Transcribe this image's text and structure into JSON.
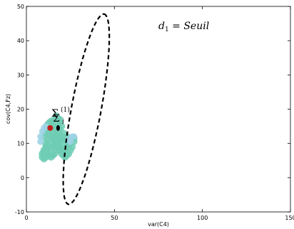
{
  "chart_data": {
    "type": "scatter",
    "xlabel": "var(C4)",
    "ylabel": "cov(C4,Fz)",
    "xlim": [
      0,
      150
    ],
    "ylim": [
      -10,
      50
    ],
    "xticks": [
      0,
      50,
      100,
      150
    ],
    "yticks": [
      -10,
      0,
      10,
      20,
      30,
      40,
      50
    ],
    "grid": false,
    "threshold_label_math": "d",
    "threshold_label_sub": "1",
    "threshold_label_rest": " = Seuil",
    "cluster_label_sigma": "Σ",
    "cluster_label_sub": "i",
    "cluster_label_sup": "(1)",
    "colors": {
      "cluster": "#6fcdb4",
      "cluster_light": "#9fd3e6",
      "center_red": "#c21d1d",
      "center_black": "#000000",
      "ellipse": "#000000"
    },
    "ellipse": {
      "center": [
        34,
        20
      ],
      "semi_axis_along": 31.5,
      "semi_axis_across": 10.5,
      "angle_deg": 60
    },
    "cluster_points": [
      [
        10,
        12
      ],
      [
        11,
        13
      ],
      [
        12,
        14
      ],
      [
        13,
        16
      ],
      [
        14,
        15
      ],
      [
        15,
        16
      ],
      [
        16,
        17
      ],
      [
        12,
        15.5
      ],
      [
        14,
        16.5
      ],
      [
        17,
        18
      ],
      [
        18,
        17
      ],
      [
        19,
        16
      ],
      [
        20,
        15
      ],
      [
        19,
        14
      ],
      [
        18,
        13
      ],
      [
        17,
        12
      ],
      [
        16,
        11
      ],
      [
        15,
        11.5
      ],
      [
        14,
        12
      ],
      [
        13,
        12.5
      ],
      [
        12,
        11
      ],
      [
        11,
        10
      ],
      [
        10,
        8
      ],
      [
        9,
        7
      ],
      [
        9,
        6
      ],
      [
        10,
        7.5
      ],
      [
        12,
        8
      ],
      [
        14,
        8.5
      ],
      [
        15,
        9
      ],
      [
        16,
        10
      ],
      [
        17,
        11
      ],
      [
        18,
        10
      ],
      [
        19,
        9
      ],
      [
        20,
        8.5
      ],
      [
        21,
        8
      ],
      [
        22,
        8.5
      ],
      [
        23,
        9
      ],
      [
        24,
        9.5
      ],
      [
        25,
        10
      ],
      [
        26,
        11
      ],
      [
        27,
        11.5
      ],
      [
        27,
        10.5
      ],
      [
        26,
        9
      ],
      [
        25,
        8
      ],
      [
        24,
        7
      ],
      [
        23,
        6.5
      ],
      [
        22,
        6
      ],
      [
        21,
        6.5
      ],
      [
        20,
        7
      ],
      [
        19,
        8
      ],
      [
        18,
        9
      ],
      [
        17,
        8
      ],
      [
        16,
        7
      ],
      [
        15,
        6.5
      ],
      [
        14,
        6
      ],
      [
        13,
        6.5
      ],
      [
        12,
        7
      ],
      [
        11,
        6
      ],
      [
        10,
        5.5
      ],
      [
        16,
        13
      ],
      [
        17,
        14
      ],
      [
        18,
        15
      ],
      [
        19,
        17
      ],
      [
        20,
        11
      ],
      [
        21,
        10
      ],
      [
        22,
        11
      ],
      [
        23,
        12
      ],
      [
        13,
        10
      ],
      [
        12,
        9
      ],
      [
        11,
        9
      ],
      [
        15,
        13
      ],
      [
        16,
        15
      ],
      [
        20,
        12
      ],
      [
        21,
        13
      ],
      [
        19,
        12
      ],
      [
        18,
        11
      ],
      [
        17,
        9.5
      ]
    ],
    "cluster_light_points": [
      [
        8,
        12
      ],
      [
        9,
        13.5
      ],
      [
        10,
        14.5
      ],
      [
        11,
        15
      ],
      [
        8,
        10.5
      ],
      [
        25,
        10.5
      ],
      [
        26,
        12
      ],
      [
        24,
        11
      ],
      [
        27,
        12
      ]
    ],
    "center_red": [
      13.5,
      14.5
    ],
    "center_black": [
      18,
      14.5
    ]
  }
}
